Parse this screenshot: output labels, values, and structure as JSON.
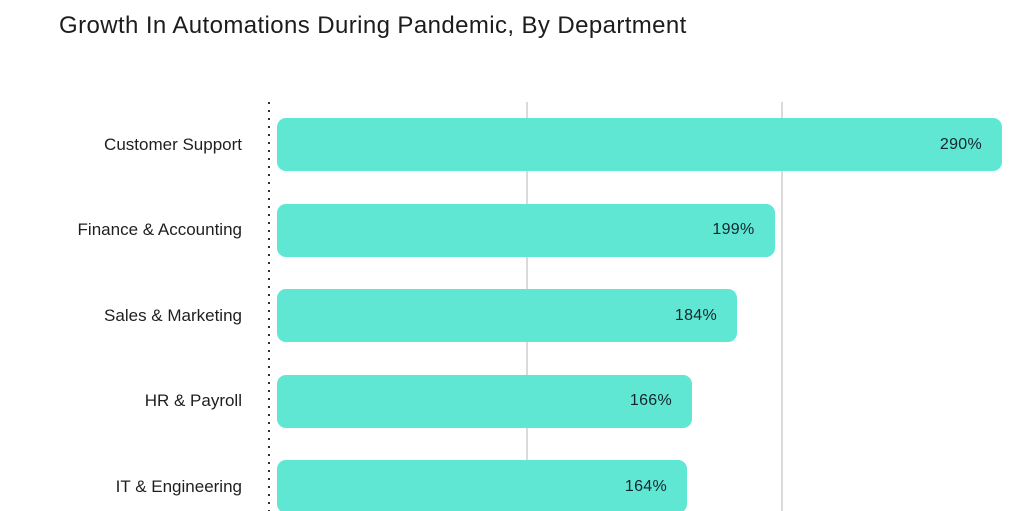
{
  "chart_data": {
    "type": "bar",
    "orientation": "horizontal",
    "title": "Growth In Automations During Pandemic, By Department",
    "categories": [
      "Customer Support",
      "Finance & Accounting",
      "Sales & Marketing",
      "HR & Payroll",
      "IT & Engineering"
    ],
    "values": [
      290,
      199,
      184,
      166,
      164
    ],
    "value_labels": [
      "290%",
      "199%",
      "184%",
      "166%",
      "164%"
    ],
    "unit": "%",
    "xlabel": "",
    "ylabel": "",
    "xlim": [
      0,
      300
    ],
    "x_gridlines": [
      100,
      200
    ],
    "grid": "vertical light gridlines, no tick labels",
    "legend": "none",
    "axis_baseline": "dotted vertical line at value 0",
    "bar_color": "#5fe7d3",
    "value_label_color": "#13262e",
    "category_label_color": "#1f1f1f",
    "gridline_color": "#dadada",
    "title_color": "#1c1c1c",
    "background_color": "#ffffff",
    "note": "bottom bar is clipped by the bottom edge of the canvas"
  }
}
